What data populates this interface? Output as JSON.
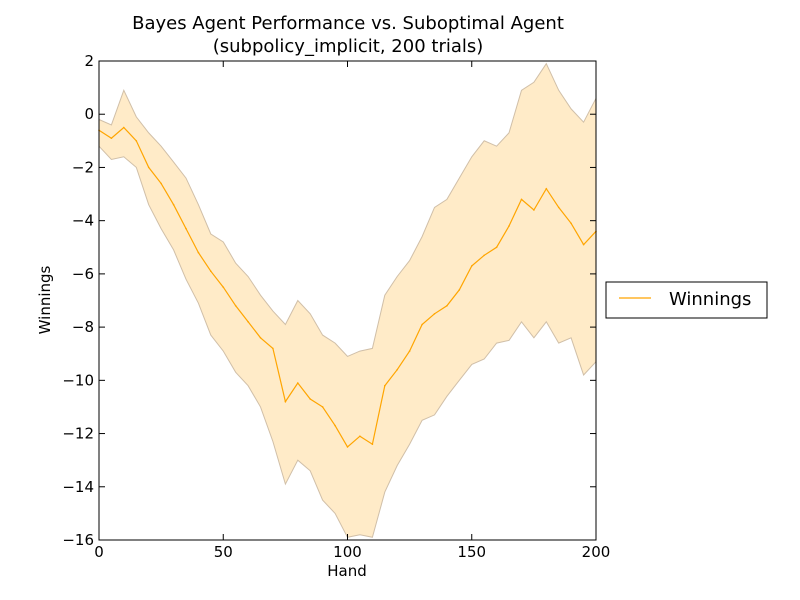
{
  "chart_data": {
    "type": "line",
    "title": "Bayes Agent Performance vs. Suboptimal Agent",
    "subtitle": "(subpolicy_implicit, 200 trials)",
    "xlabel": "Hand",
    "ylabel": "Winnings",
    "xlim": [
      0,
      200
    ],
    "ylim": [
      -16,
      2
    ],
    "xticks": [
      0,
      50,
      100,
      150,
      200
    ],
    "yticks": [
      2,
      0,
      -2,
      -4,
      -6,
      -8,
      -10,
      -12,
      -14,
      -16
    ],
    "grid": false,
    "legend_position": "right, outside",
    "colors": {
      "line": "#ffa500",
      "band_fill": "#ffebc8",
      "band_edge": "#d0bfa8"
    },
    "series": [
      {
        "name": "Winnings",
        "x": [
          0,
          5,
          10,
          15,
          20,
          25,
          30,
          35,
          40,
          45,
          50,
          55,
          60,
          65,
          70,
          75,
          80,
          85,
          90,
          95,
          100,
          105,
          110,
          115,
          120,
          125,
          130,
          135,
          140,
          145,
          150,
          155,
          160,
          165,
          170,
          175,
          180,
          185,
          190,
          195,
          200
        ],
        "values": [
          -0.6,
          -0.9,
          -0.5,
          -1.0,
          -2.0,
          -2.6,
          -3.4,
          -4.3,
          -5.2,
          -5.9,
          -6.5,
          -7.2,
          -7.8,
          -8.4,
          -8.8,
          -10.8,
          -10.1,
          -10.7,
          -11.0,
          -11.7,
          -12.5,
          -12.1,
          -12.4,
          -10.2,
          -9.6,
          -8.9,
          -7.9,
          -7.5,
          -7.2,
          -6.6,
          -5.7,
          -5.3,
          -5.0,
          -4.2,
          -3.2,
          -3.6,
          -2.8,
          -3.5,
          -4.1,
          -4.9,
          -4.4
        ],
        "lower": [
          -1.2,
          -1.7,
          -1.6,
          -2.0,
          -3.4,
          -4.3,
          -5.1,
          -6.2,
          -7.1,
          -8.3,
          -8.9,
          -9.7,
          -10.2,
          -11.0,
          -12.3,
          -13.9,
          -13.0,
          -13.4,
          -14.5,
          -15.0,
          -15.9,
          -15.8,
          -15.9,
          -14.2,
          -13.2,
          -12.4,
          -11.5,
          -11.3,
          -10.6,
          -10.0,
          -9.4,
          -9.2,
          -8.6,
          -8.5,
          -7.8,
          -8.4,
          -7.8,
          -8.6,
          -8.4,
          -9.8,
          -9.3
        ],
        "upper": [
          -0.2,
          -0.4,
          0.9,
          -0.1,
          -0.7,
          -1.2,
          -1.8,
          -2.4,
          -3.4,
          -4.5,
          -4.8,
          -5.6,
          -6.1,
          -6.8,
          -7.4,
          -7.9,
          -7.0,
          -7.5,
          -8.3,
          -8.6,
          -9.1,
          -8.9,
          -8.8,
          -6.8,
          -6.1,
          -5.5,
          -4.6,
          -3.5,
          -3.2,
          -2.4,
          -1.6,
          -1.0,
          -1.2,
          -0.7,
          0.9,
          1.2,
          1.9,
          0.9,
          0.2,
          -0.3,
          0.6
        ]
      }
    ]
  }
}
